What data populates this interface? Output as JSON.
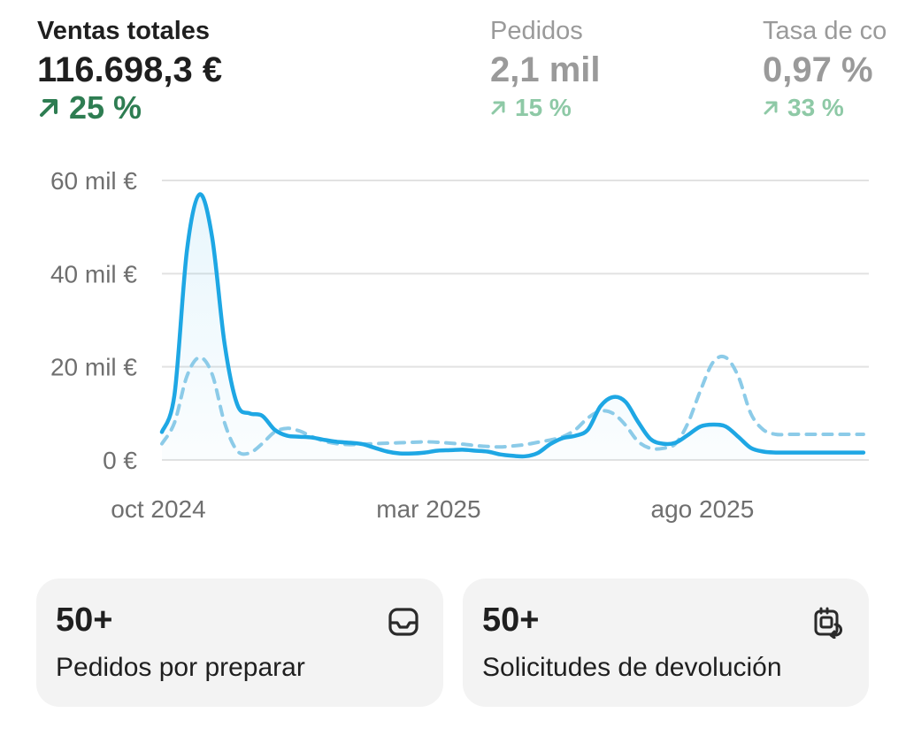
{
  "metrics": [
    {
      "label": "Ventas totales",
      "value": "116.698,3 €",
      "delta": "25 %",
      "direction": "up",
      "active": true
    },
    {
      "label": "Pedidos",
      "value": "2,1 mil",
      "delta": "15 %",
      "direction": "up",
      "active": false
    },
    {
      "label": "Tasa de conversión",
      "label_visible": "Tasa de co",
      "value": "0,97 %",
      "delta": "33 %",
      "direction": "up",
      "active": false
    }
  ],
  "chart_data": {
    "type": "line",
    "title": "",
    "xlabel": "",
    "ylabel": "",
    "ylim": [
      0,
      60000
    ],
    "y_ticks": [
      0,
      20000,
      40000,
      60000
    ],
    "y_tick_labels": [
      "0 €",
      "20 mil €",
      "40 mil €",
      "60 mil €"
    ],
    "x_range": [
      "2024-10-01",
      "2025-10-31"
    ],
    "x_ticks": [
      "2024-10-01",
      "2025-03-01",
      "2025-08-01"
    ],
    "x_tick_labels": [
      "oct 2024",
      "mar 2025",
      "ago 2025"
    ],
    "grid": true,
    "series": [
      {
        "style": "solid",
        "color": "#1ea7e4",
        "x": [
          "2024-10-01",
          "2024-10-08",
          "2024-10-15",
          "2024-10-22",
          "2024-10-29",
          "2024-11-05",
          "2024-11-12",
          "2024-11-19",
          "2024-11-26",
          "2024-12-03",
          "2024-12-10",
          "2024-12-17",
          "2024-12-24",
          "2024-12-31",
          "2025-01-07",
          "2025-01-14",
          "2025-01-21",
          "2025-01-28",
          "2025-02-04",
          "2025-02-11",
          "2025-02-18",
          "2025-02-25",
          "2025-03-04",
          "2025-03-11",
          "2025-03-18",
          "2025-03-25",
          "2025-04-01",
          "2025-04-08",
          "2025-04-15",
          "2025-04-22",
          "2025-04-29",
          "2025-05-06",
          "2025-05-13",
          "2025-05-20",
          "2025-05-27",
          "2025-06-03",
          "2025-06-10",
          "2025-06-17",
          "2025-06-24",
          "2025-07-01",
          "2025-07-08",
          "2025-07-15",
          "2025-07-22",
          "2025-07-29",
          "2025-08-05",
          "2025-08-12",
          "2025-08-19",
          "2025-08-26",
          "2025-09-02",
          "2025-09-09",
          "2025-09-16",
          "2025-09-23",
          "2025-09-30",
          "2025-10-07",
          "2025-10-14",
          "2025-10-21",
          "2025-10-28"
        ],
        "y": [
          6000,
          14000,
          45000,
          57000,
          48000,
          25000,
          12000,
          10000,
          9500,
          6500,
          5200,
          5000,
          4800,
          4300,
          3900,
          3700,
          3400,
          2600,
          1800,
          1400,
          1400,
          1600,
          2000,
          2100,
          2200,
          2000,
          1800,
          1200,
          900,
          800,
          1500,
          3400,
          4700,
          5200,
          6500,
          11500,
          13500,
          12500,
          8200,
          4500,
          3500,
          3700,
          5400,
          7200,
          7600,
          7200,
          5000,
          2600,
          1800,
          1600,
          1600,
          1600,
          1600,
          1600,
          1600,
          1600,
          1600
        ]
      },
      {
        "style": "dashed",
        "color": "#8ccbe8",
        "x": [
          "2024-10-01",
          "2024-10-08",
          "2024-10-15",
          "2024-10-22",
          "2024-10-29",
          "2024-11-05",
          "2024-11-12",
          "2024-11-19",
          "2024-11-26",
          "2024-12-03",
          "2024-12-10",
          "2024-12-17",
          "2024-12-24",
          "2024-12-31",
          "2025-01-07",
          "2025-01-14",
          "2025-01-21",
          "2025-01-28",
          "2025-02-04",
          "2025-02-11",
          "2025-02-18",
          "2025-02-25",
          "2025-03-04",
          "2025-03-11",
          "2025-03-18",
          "2025-03-25",
          "2025-04-01",
          "2025-04-08",
          "2025-04-15",
          "2025-04-22",
          "2025-04-29",
          "2025-05-06",
          "2025-05-13",
          "2025-05-20",
          "2025-05-27",
          "2025-06-03",
          "2025-06-10",
          "2025-06-17",
          "2025-06-24",
          "2025-07-01",
          "2025-07-08",
          "2025-07-15",
          "2025-07-22",
          "2025-07-29",
          "2025-08-05",
          "2025-08-12",
          "2025-08-19",
          "2025-08-26",
          "2025-09-02",
          "2025-09-09",
          "2025-09-16",
          "2025-09-23",
          "2025-09-30",
          "2025-10-07",
          "2025-10-14",
          "2025-10-21",
          "2025-10-28"
        ],
        "y": [
          3500,
          8000,
          18000,
          22000,
          18500,
          8000,
          2000,
          1500,
          3500,
          6000,
          6800,
          6200,
          5000,
          4000,
          3500,
          3300,
          3400,
          3500,
          3600,
          3700,
          3800,
          3900,
          3800,
          3600,
          3400,
          3100,
          2900,
          2800,
          3000,
          3300,
          3800,
          4300,
          5000,
          6500,
          9000,
          10500,
          10000,
          7500,
          4000,
          2500,
          2500,
          3500,
          8000,
          15000,
          21000,
          22000,
          18000,
          10000,
          6500,
          5500,
          5500,
          5500,
          5500,
          5500,
          5500,
          5500,
          5500
        ]
      }
    ]
  },
  "cards": [
    {
      "value": "50+",
      "label": "Pedidos por preparar",
      "icon": "inbox-icon"
    },
    {
      "value": "50+",
      "label": "Solicitudes de devolución",
      "icon": "return-request-icon"
    }
  ],
  "colors": {
    "primary_line": "#1ea7e4",
    "comparison_line": "#8ccbe8",
    "positive_active": "#2e7d52",
    "positive_inactive": "#8ec9a6",
    "inactive_text": "#9a9a9a",
    "card_background": "#f3f3f3",
    "grid": "#e2e2e2"
  }
}
